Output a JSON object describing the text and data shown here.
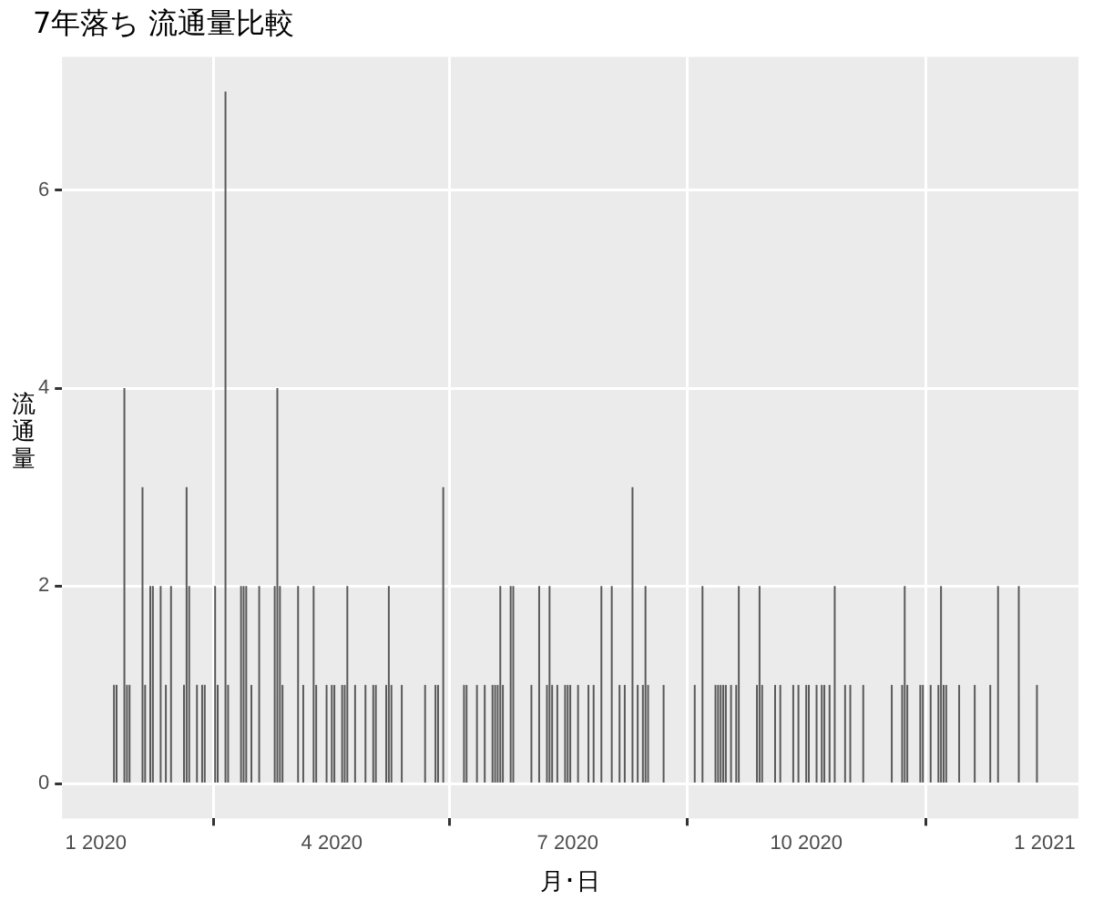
{
  "chart_data": {
    "type": "bar",
    "title": "7年落ち 流通量比較",
    "xlabel": "月･日",
    "ylabel": "流通量",
    "color": "#595959",
    "grid": true,
    "xlim": [
      "2019-12-19",
      "2021-01-14"
    ],
    "xticks": [
      {
        "value": "2020-01-01",
        "label": "1 2020"
      },
      {
        "value": "2020-04-01",
        "label": "4 2020"
      },
      {
        "value": "2020-07-01",
        "label": "7 2020"
      },
      {
        "value": "2020-10-01",
        "label": "10 2020"
      },
      {
        "value": "2021-01-01",
        "label": "1 2021"
      }
    ],
    "ylim": [
      -0.35,
      7.35
    ],
    "yticks": [
      0,
      2,
      4,
      6
    ],
    "x": [
      "2020-01-08",
      "2020-01-09",
      "2020-01-12",
      "2020-01-13",
      "2020-01-14",
      "2020-01-19",
      "2020-01-20",
      "2020-01-22",
      "2020-01-23",
      "2020-01-26",
      "2020-01-28",
      "2020-01-30",
      "2020-02-04",
      "2020-02-05",
      "2020-02-06",
      "2020-02-09",
      "2020-02-11",
      "2020-02-12",
      "2020-02-16",
      "2020-02-17",
      "2020-02-20",
      "2020-02-21",
      "2020-02-26",
      "2020-02-27",
      "2020-02-28",
      "2020-03-01",
      "2020-03-04",
      "2020-03-10",
      "2020-03-11",
      "2020-03-12",
      "2020-03-13",
      "2020-03-19",
      "2020-03-21",
      "2020-03-25",
      "2020-03-26",
      "2020-03-30",
      "2020-04-01",
      "2020-04-02",
      "2020-04-05",
      "2020-04-06",
      "2020-04-07",
      "2020-04-10",
      "2020-04-14",
      "2020-04-17",
      "2020-04-18",
      "2020-04-22",
      "2020-04-23",
      "2020-04-24",
      "2020-04-28",
      "2020-05-07",
      "2020-05-11",
      "2020-05-12",
      "2020-05-14",
      "2020-05-22",
      "2020-05-23",
      "2020-05-27",
      "2020-05-30",
      "2020-06-02",
      "2020-06-03",
      "2020-06-04",
      "2020-06-05",
      "2020-06-06",
      "2020-06-09",
      "2020-06-10",
      "2020-06-17",
      "2020-06-20",
      "2020-06-23",
      "2020-06-24",
      "2020-06-25",
      "2020-06-27",
      "2020-06-30",
      "2020-07-01",
      "2020-07-02",
      "2020-07-05",
      "2020-07-09",
      "2020-07-11",
      "2020-07-14",
      "2020-07-18",
      "2020-07-21",
      "2020-07-23",
      "2020-07-26",
      "2020-07-28",
      "2020-07-30",
      "2020-07-31",
      "2020-08-01",
      "2020-08-07",
      "2020-08-19",
      "2020-08-22",
      "2020-08-27",
      "2020-08-28",
      "2020-08-29",
      "2020-08-30",
      "2020-08-31",
      "2020-09-02",
      "2020-09-04",
      "2020-09-05",
      "2020-09-12",
      "2020-09-13",
      "2020-09-14",
      "2020-09-19",
      "2020-09-21",
      "2020-09-26",
      "2020-09-28",
      "2020-10-01",
      "2020-10-02",
      "2020-10-05",
      "2020-10-07",
      "2020-10-08",
      "2020-10-10",
      "2020-10-12",
      "2020-10-16",
      "2020-10-18",
      "2020-10-23",
      "2020-11-03",
      "2020-11-07",
      "2020-11-08",
      "2020-11-09",
      "2020-11-14",
      "2020-11-15",
      "2020-11-18",
      "2020-11-21",
      "2020-11-22",
      "2020-11-23",
      "2020-11-24",
      "2020-11-29",
      "2020-12-05",
      "2020-12-11",
      "2020-12-14",
      "2020-12-22",
      "2020-12-29"
    ],
    "values": [
      1,
      1,
      4,
      1,
      1,
      3,
      1,
      2,
      2,
      2,
      1,
      2,
      1,
      3,
      2,
      1,
      1,
      1,
      2,
      1,
      7,
      1,
      2,
      2,
      2,
      1,
      2,
      2,
      4,
      2,
      1,
      2,
      1,
      2,
      1,
      1,
      1,
      1,
      1,
      1,
      2,
      1,
      1,
      1,
      1,
      1,
      2,
      1,
      1,
      1,
      1,
      1,
      3,
      1,
      1,
      1,
      1,
      1,
      1,
      1,
      2,
      1,
      2,
      2,
      1,
      2,
      1,
      2,
      1,
      1,
      1,
      1,
      1,
      1,
      1,
      1,
      2,
      2,
      1,
      1,
      3,
      1,
      1,
      2,
      1,
      1,
      1,
      2,
      1,
      1,
      1,
      1,
      1,
      1,
      1,
      2,
      1,
      2,
      1,
      1,
      1,
      1,
      1,
      1,
      1,
      1,
      1,
      1,
      1,
      2,
      1,
      1,
      1,
      1,
      1,
      2,
      1,
      1,
      1,
      1,
      1,
      2,
      1,
      1,
      1,
      1,
      1,
      2,
      2,
      1
    ]
  }
}
